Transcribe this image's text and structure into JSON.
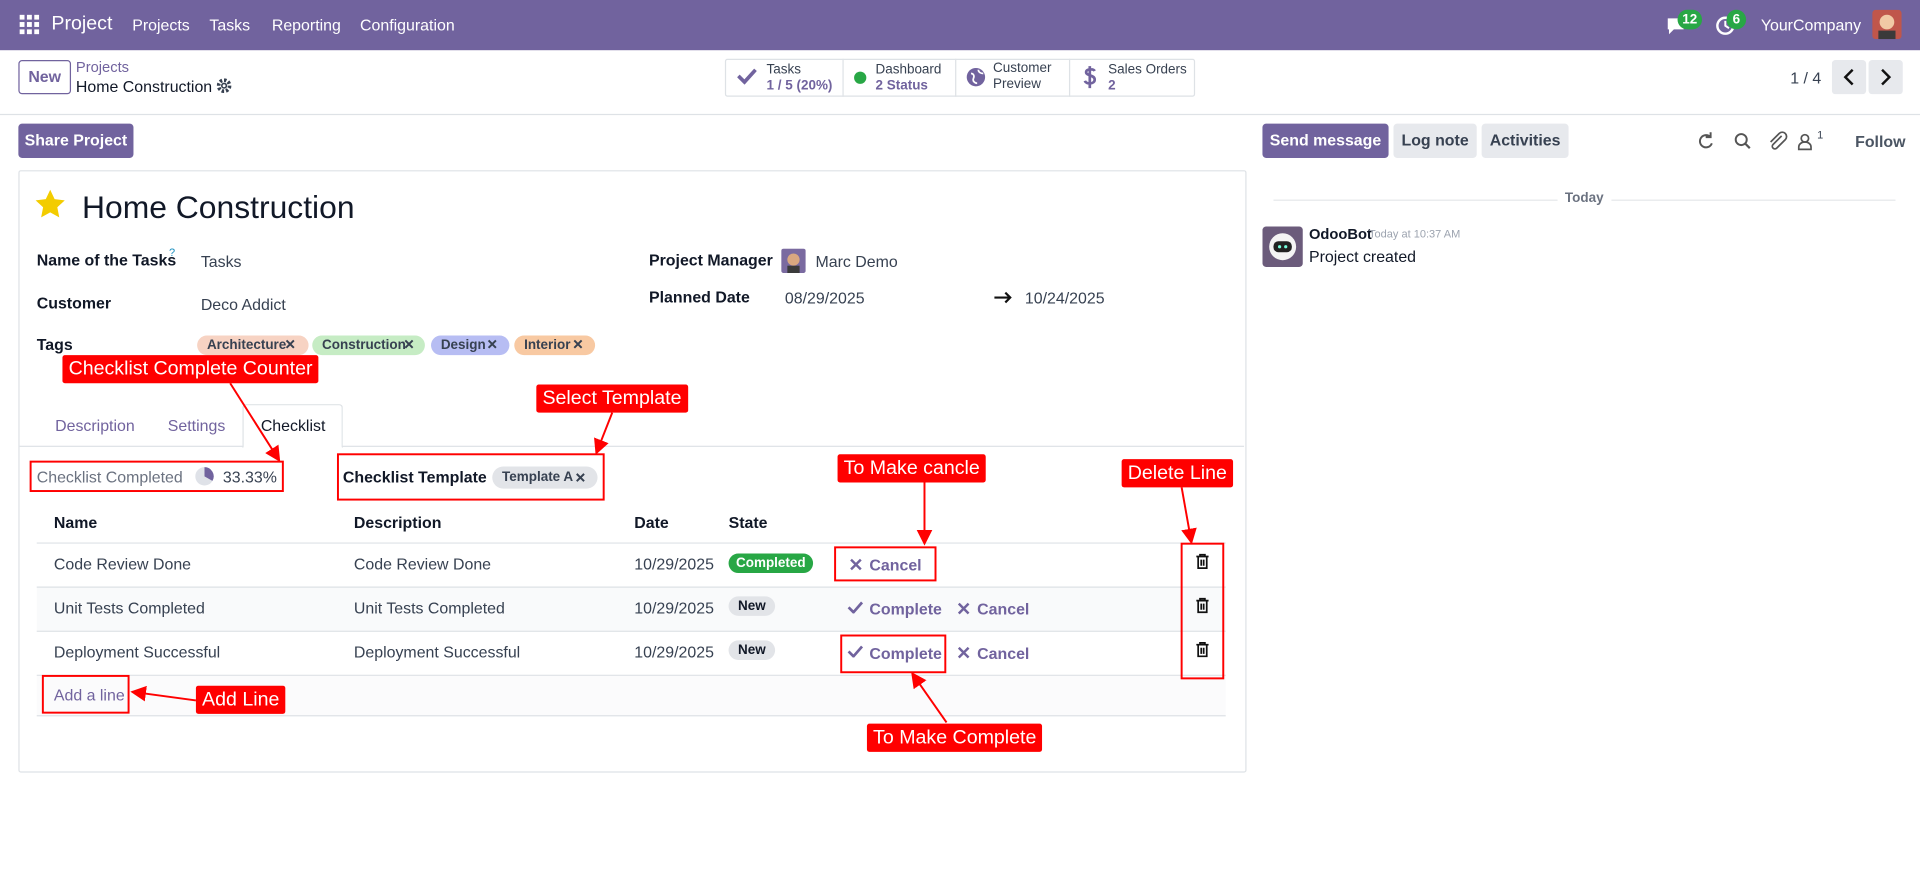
{
  "navbar": {
    "app": "Project",
    "menu": [
      "Projects",
      "Tasks",
      "Reporting",
      "Configuration"
    ],
    "messages_badge": 12,
    "activities_badge": 6,
    "company": "YourCompany"
  },
  "control_panel": {
    "new_button": "New",
    "breadcrumb": "Projects",
    "record": "Home Construction",
    "smart_buttons": [
      {
        "label": "Tasks",
        "value": "1 / 5 (20%)"
      },
      {
        "label": "Dashboard",
        "value": "2 Status"
      },
      {
        "label": "Customer",
        "value": "Preview"
      },
      {
        "label": "Sales Orders",
        "value": "2"
      }
    ],
    "pager": "1 / 4"
  },
  "actions": {
    "share": "Share Project",
    "send_message": "Send message",
    "log_note": "Log note",
    "activities": "Activities",
    "followers": "1",
    "follow": "Follow"
  },
  "form": {
    "title": "Home Construction",
    "name_of_tasks": {
      "label": "Name of the Tasks",
      "help": "?",
      "value": "Tasks"
    },
    "customer": {
      "label": "Customer",
      "value": "Deco Addict"
    },
    "tags": {
      "label": "Tags",
      "values": [
        "Architecture",
        "Construction",
        "Design",
        "Interior"
      ]
    },
    "project_manager": {
      "label": "Project Manager",
      "value": "Marc Demo"
    },
    "planned_date": {
      "label": "Planned Date",
      "start": "08/29/2025",
      "end": "10/24/2025"
    },
    "tabs": [
      "Description",
      "Settings",
      "Checklist"
    ],
    "checklist_completed": {
      "label": "Checklist Completed",
      "value": "33.33%"
    },
    "checklist_template": {
      "label": "Checklist Template",
      "value": "Template A"
    },
    "table": {
      "headers": [
        "Name",
        "Description",
        "Date",
        "State"
      ],
      "rows": [
        {
          "name": "Code Review Done",
          "description": "Code Review Done",
          "date": "10/29/2025",
          "state": "Completed",
          "actions": [
            "Cancel"
          ]
        },
        {
          "name": "Unit Tests Completed",
          "description": "Unit Tests Completed",
          "date": "10/29/2025",
          "state": "New",
          "actions": [
            "Complete",
            "Cancel"
          ]
        },
        {
          "name": "Deployment Successful",
          "description": "Deployment Successful",
          "date": "10/29/2025",
          "state": "New",
          "actions": [
            "Complete",
            "Cancel"
          ]
        }
      ],
      "add_line": "Add a line"
    }
  },
  "chatter": {
    "day": "Today",
    "author": "OdooBot",
    "time": "Today at 10:37 AM",
    "message": "Project created"
  },
  "annotations": [
    "Checklist Complete Counter",
    "Select Template",
    "To Make cancle",
    "Delete Line",
    "Add Line",
    "To Make Complete"
  ]
}
